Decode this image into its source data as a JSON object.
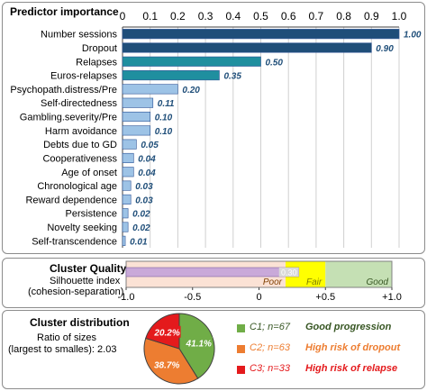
{
  "predictor_panel": {
    "title": "Predictor importance"
  },
  "cluster_quality": {
    "title": "Cluster Quality",
    "measure_line1": "Silhouette index",
    "measure_line2": "(cohesion-separation)",
    "value": 0.3,
    "value_label": "0.30",
    "zones": [
      {
        "label": "Poor",
        "from": -1.0,
        "to": 0.2,
        "color": "#fbe2d5"
      },
      {
        "label": "Fair",
        "from": 0.2,
        "to": 0.5,
        "color": "#ffff00"
      },
      {
        "label": "Good",
        "from": 0.5,
        "to": 1.0,
        "color": "#c5e0b4"
      }
    ],
    "ticks": [
      "-1.0",
      "-0.5",
      "0",
      "+0.5",
      "+1.0"
    ],
    "bar_color": "#c9a9d9"
  },
  "cluster_distribution": {
    "title": "Cluster distribution",
    "ratio_line1": "Ratio of sizes",
    "ratio_line2": "(largest to smalles): 2.03",
    "legend": [
      {
        "tag": "C1; n=67",
        "desc": "Good progression",
        "color": "#70ad47",
        "text_color": "#375623"
      },
      {
        "tag": "C2; n=63",
        "desc": "High risk of dropout",
        "color": "#ed7d31",
        "text_color": "#ed7d31"
      },
      {
        "tag": "C3; n=33",
        "desc": "High risk of relapse",
        "color": "#e41a1c",
        "text_color": "#e41a1c"
      }
    ]
  },
  "chart_data": [
    {
      "type": "bar",
      "orientation": "horizontal",
      "title": "Predictor importance",
      "categories": [
        "Number sessions",
        "Dropout",
        "Relapses",
        "Euros-relapses",
        "Psychopath.distress/Pre",
        "Self-directedness",
        "Gambling.severity/Pre",
        "Harm avoidance",
        "Debts due to GD",
        "Cooperativeness",
        "Age of onset",
        "Chronological age",
        "Reward dependence",
        "Persistence",
        "Novelty seeking",
        "Self-transcendence"
      ],
      "values": [
        1.0,
        0.9,
        0.5,
        0.35,
        0.2,
        0.11,
        0.1,
        0.1,
        0.05,
        0.04,
        0.04,
        0.03,
        0.03,
        0.02,
        0.02,
        0.01
      ],
      "value_labels": [
        "1.00",
        "0.90",
        "0.50",
        "0.35",
        "0.20",
        "0.11",
        "0.10",
        "0.10",
        "0.05",
        "0.04",
        "0.04",
        "0.03",
        "0.03",
        "0.02",
        "0.02",
        "0.01"
      ],
      "colors": [
        "#1f4e79",
        "#1f4e79",
        "#1f8f9f",
        "#1f8f9f",
        "#9dc3e6",
        "#9dc3e6",
        "#9dc3e6",
        "#9dc3e6",
        "#9dc3e6",
        "#9dc3e6",
        "#9dc3e6",
        "#9dc3e6",
        "#9dc3e6",
        "#9dc3e6",
        "#9dc3e6",
        "#9dc3e6"
      ],
      "xlim": [
        0,
        1
      ],
      "xticks": [
        "0",
        "0.1",
        "0.2",
        "0.3",
        "0.4",
        "0.5",
        "0.6",
        "0.7",
        "0.8",
        "0.9",
        "1.0"
      ],
      "grid": true,
      "axis_position": "top"
    },
    {
      "type": "pie",
      "title": "Cluster distribution",
      "labels": [
        "C1",
        "C2",
        "C3"
      ],
      "values": [
        41.1,
        38.7,
        20.2
      ],
      "value_labels": [
        "41.1%",
        "38.7%",
        "20.2%"
      ],
      "colors": [
        "#70ad47",
        "#ed7d31",
        "#e41a1c"
      ]
    }
  ]
}
